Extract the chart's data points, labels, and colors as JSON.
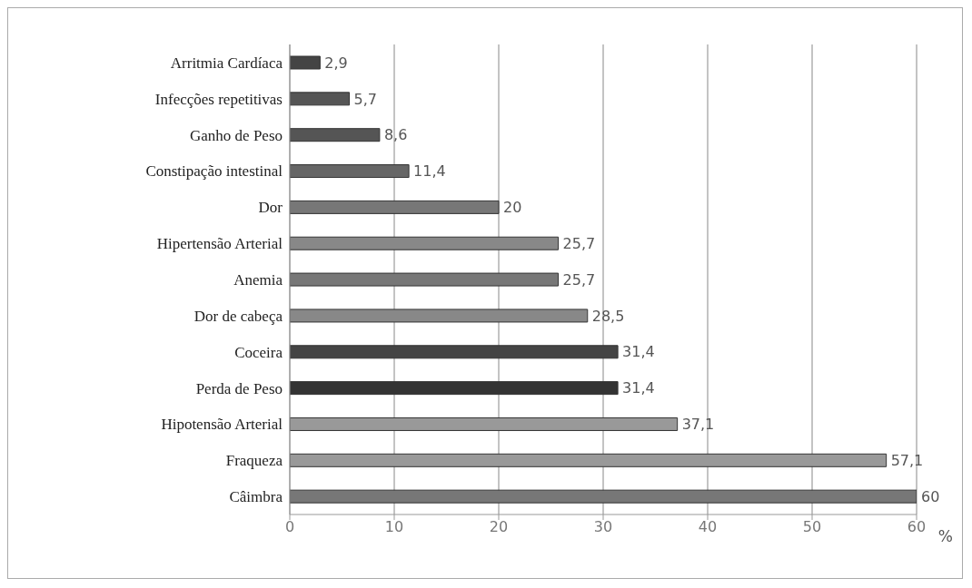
{
  "chart_data": {
    "type": "bar",
    "orientation": "horizontal",
    "categories": [
      "Arritmia Cardíaca",
      "Infecções repetitivas",
      "Ganho de Peso",
      "Constipação intestinal",
      "Dor",
      "Hipertensão Arterial",
      "Anemia",
      "Dor de cabeça",
      "Coceira",
      "Perda de Peso",
      "Hipotensão Arterial",
      "Fraqueza",
      "Câimbra"
    ],
    "values": [
      2.9,
      5.7,
      8.6,
      11.4,
      20,
      25.7,
      25.7,
      28.5,
      31.4,
      31.4,
      37.1,
      57.1,
      60
    ],
    "value_labels": [
      "2,9",
      "5,7",
      "8,6",
      "11,4",
      "20",
      "25,7",
      "25,7",
      "28,5",
      "31,4",
      "31,4",
      "37,1",
      "57,1",
      "60"
    ],
    "colors": [
      "#444444",
      "#555555",
      "#555555",
      "#666666",
      "#777777",
      "#888888",
      "#777777",
      "#888888",
      "#444444",
      "#333333",
      "#999999",
      "#999999",
      "#777777"
    ],
    "xlabel": "%",
    "xlim": [
      0,
      60
    ],
    "xticks": [
      0,
      10,
      20,
      30,
      40,
      50,
      60
    ],
    "grid": "x",
    "legend": false
  }
}
